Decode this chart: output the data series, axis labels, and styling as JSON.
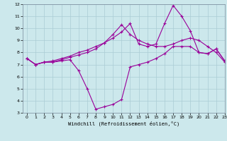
{
  "line1_x": [
    0,
    1,
    2,
    3,
    4,
    5,
    6,
    7,
    8,
    9,
    10,
    11,
    12,
    13,
    14,
    15,
    16,
    17,
    18,
    19,
    20,
    21,
    22,
    23
  ],
  "line1_y": [
    7.5,
    7.0,
    7.2,
    7.2,
    7.3,
    7.4,
    6.5,
    5.0,
    3.3,
    3.5,
    3.7,
    4.1,
    6.8,
    7.0,
    7.2,
    7.5,
    7.9,
    8.5,
    8.5,
    8.5,
    8.0,
    7.9,
    8.3,
    7.3
  ],
  "line2_x": [
    0,
    1,
    2,
    3,
    4,
    5,
    6,
    7,
    8,
    9,
    10,
    11,
    12,
    13,
    14,
    15,
    16,
    17,
    18,
    19,
    20,
    21,
    22,
    23
  ],
  "line2_y": [
    7.5,
    7.0,
    7.2,
    7.2,
    7.4,
    7.6,
    7.8,
    8.0,
    8.3,
    8.8,
    9.5,
    10.3,
    9.5,
    9.0,
    8.7,
    8.5,
    8.5,
    8.7,
    9.0,
    9.2,
    9.0,
    8.5,
    8.0,
    7.2
  ],
  "line3_x": [
    0,
    1,
    2,
    3,
    4,
    5,
    6,
    7,
    8,
    9,
    10,
    11,
    12,
    13,
    14,
    15,
    16,
    17,
    18,
    19,
    20,
    21,
    22,
    23
  ],
  "line3_y": [
    7.5,
    7.0,
    7.2,
    7.3,
    7.5,
    7.7,
    8.0,
    8.2,
    8.5,
    8.8,
    9.2,
    9.7,
    10.4,
    8.7,
    8.5,
    8.7,
    10.4,
    11.9,
    11.0,
    9.8,
    8.0,
    7.9,
    8.3,
    7.3
  ],
  "line_color": "#990099",
  "bg_color": "#cce8ec",
  "grid_color": "#aaccd4",
  "xlabel": "Windchill (Refroidissement éolien,°C)",
  "xlim": [
    -0.5,
    23
  ],
  "ylim": [
    3,
    12
  ],
  "yticks": [
    3,
    4,
    5,
    6,
    7,
    8,
    9,
    10,
    11,
    12
  ],
  "xticks": [
    0,
    1,
    2,
    3,
    4,
    5,
    6,
    7,
    8,
    9,
    10,
    11,
    12,
    13,
    14,
    15,
    16,
    17,
    18,
    19,
    20,
    21,
    22,
    23
  ]
}
